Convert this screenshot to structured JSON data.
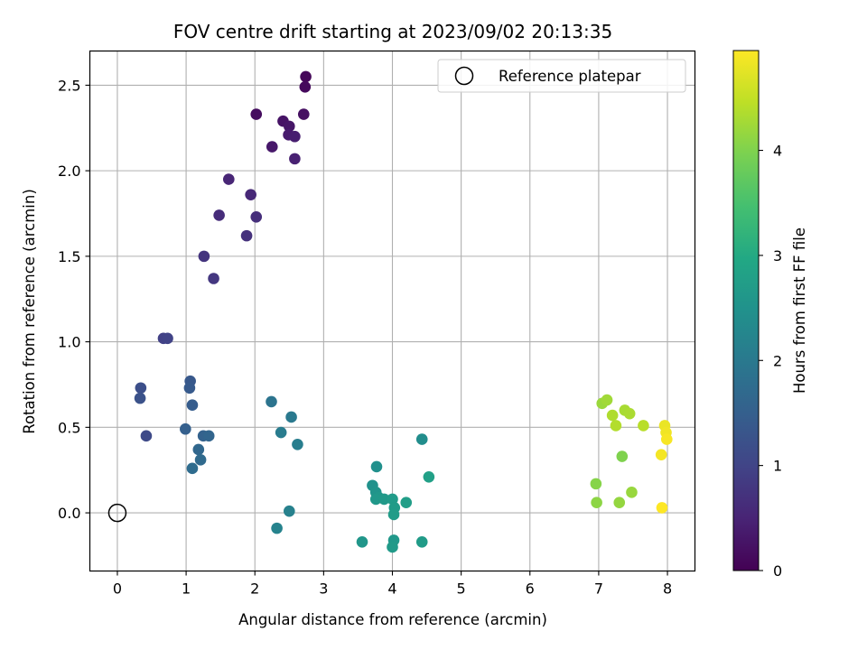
{
  "chart_data": {
    "type": "scatter",
    "title": "FOV centre drift starting at 2023/09/02 20:13:35",
    "xlabel": "Angular distance from reference (arcmin)",
    "ylabel": "Rotation from reference (arcmin)",
    "xlim": [
      -0.4,
      8.4
    ],
    "ylim": [
      -0.34,
      2.7
    ],
    "xticks": [
      "0",
      "1",
      "2",
      "3",
      "4",
      "5",
      "6",
      "7",
      "8"
    ],
    "yticks": [
      "0.0",
      "0.5",
      "1.0",
      "1.5",
      "2.0",
      "2.5"
    ],
    "grid": true,
    "legend": {
      "position": "top-right",
      "label": "Reference platepar"
    },
    "reference_point": {
      "x": 0,
      "y": 0
    },
    "colorbar": {
      "label": "Hours from first FF file",
      "range": [
        0,
        4.95
      ],
      "ticks": [
        "0",
        "1",
        "2",
        "3",
        "4"
      ],
      "colormap": "viridis"
    },
    "points": [
      {
        "x": 2.74,
        "y": 2.55,
        "h": 0.08
      },
      {
        "x": 2.73,
        "y": 2.49,
        "h": 0.12
      },
      {
        "x": 2.02,
        "y": 2.33,
        "h": 0.17
      },
      {
        "x": 2.71,
        "y": 2.33,
        "h": 0.21
      },
      {
        "x": 2.41,
        "y": 2.29,
        "h": 0.25
      },
      {
        "x": 2.5,
        "y": 2.26,
        "h": 0.29
      },
      {
        "x": 2.25,
        "y": 2.14,
        "h": 0.33
      },
      {
        "x": 2.49,
        "y": 2.21,
        "h": 0.37
      },
      {
        "x": 2.58,
        "y": 2.2,
        "h": 0.41
      },
      {
        "x": 2.58,
        "y": 2.07,
        "h": 0.45
      },
      {
        "x": 1.62,
        "y": 1.95,
        "h": 0.52
      },
      {
        "x": 1.94,
        "y": 1.86,
        "h": 0.56
      },
      {
        "x": 1.48,
        "y": 1.74,
        "h": 0.62
      },
      {
        "x": 2.02,
        "y": 1.73,
        "h": 0.66
      },
      {
        "x": 1.88,
        "y": 1.62,
        "h": 0.7
      },
      {
        "x": 1.26,
        "y": 1.5,
        "h": 0.75
      },
      {
        "x": 1.4,
        "y": 1.37,
        "h": 0.79
      },
      {
        "x": 0.67,
        "y": 1.02,
        "h": 0.95
      },
      {
        "x": 0.73,
        "y": 1.02,
        "h": 0.98
      },
      {
        "x": 0.42,
        "y": 0.45,
        "h": 1.1
      },
      {
        "x": 0.34,
        "y": 0.73,
        "h": 1.2
      },
      {
        "x": 0.33,
        "y": 0.67,
        "h": 1.25
      },
      {
        "x": 1.06,
        "y": 0.77,
        "h": 1.35
      },
      {
        "x": 1.05,
        "y": 0.73,
        "h": 1.4
      },
      {
        "x": 1.09,
        "y": 0.63,
        "h": 1.45
      },
      {
        "x": 0.99,
        "y": 0.49,
        "h": 1.5
      },
      {
        "x": 1.25,
        "y": 0.45,
        "h": 1.55
      },
      {
        "x": 1.33,
        "y": 0.45,
        "h": 1.6
      },
      {
        "x": 1.18,
        "y": 0.37,
        "h": 1.65
      },
      {
        "x": 1.21,
        "y": 0.31,
        "h": 1.7
      },
      {
        "x": 1.09,
        "y": 0.26,
        "h": 1.75
      },
      {
        "x": 2.24,
        "y": 0.65,
        "h": 1.9
      },
      {
        "x": 2.53,
        "y": 0.56,
        "h": 2.0
      },
      {
        "x": 2.38,
        "y": 0.47,
        "h": 2.05
      },
      {
        "x": 2.62,
        "y": 0.4,
        "h": 2.1
      },
      {
        "x": 2.5,
        "y": 0.01,
        "h": 2.15
      },
      {
        "x": 2.32,
        "y": -0.09,
        "h": 2.2
      },
      {
        "x": 4.43,
        "y": 0.43,
        "h": 2.4
      },
      {
        "x": 3.77,
        "y": 0.27,
        "h": 2.45
      },
      {
        "x": 3.71,
        "y": 0.16,
        "h": 2.5
      },
      {
        "x": 3.76,
        "y": 0.12,
        "h": 2.55
      },
      {
        "x": 3.8,
        "y": 0.09,
        "h": 2.6
      },
      {
        "x": 3.76,
        "y": 0.08,
        "h": 2.62
      },
      {
        "x": 3.88,
        "y": 0.08,
        "h": 2.65
      },
      {
        "x": 4.0,
        "y": 0.08,
        "h": 2.68
      },
      {
        "x": 4.03,
        "y": 0.03,
        "h": 2.7
      },
      {
        "x": 4.02,
        "y": -0.01,
        "h": 2.72
      },
      {
        "x": 4.2,
        "y": 0.06,
        "h": 2.75
      },
      {
        "x": 4.53,
        "y": 0.21,
        "h": 2.8
      },
      {
        "x": 3.56,
        "y": -0.17,
        "h": 2.58
      },
      {
        "x": 4.02,
        "y": -0.16,
        "h": 2.62
      },
      {
        "x": 4.0,
        "y": -0.2,
        "h": 2.66
      },
      {
        "x": 4.43,
        "y": -0.17,
        "h": 2.7
      },
      {
        "x": 7.05,
        "y": 0.64,
        "h": 4.2
      },
      {
        "x": 7.12,
        "y": 0.66,
        "h": 4.25
      },
      {
        "x": 7.38,
        "y": 0.6,
        "h": 4.3
      },
      {
        "x": 7.45,
        "y": 0.58,
        "h": 4.32
      },
      {
        "x": 7.2,
        "y": 0.57,
        "h": 4.35
      },
      {
        "x": 7.25,
        "y": 0.51,
        "h": 4.38
      },
      {
        "x": 7.65,
        "y": 0.51,
        "h": 4.42
      },
      {
        "x": 7.34,
        "y": 0.33,
        "h": 4.0
      },
      {
        "x": 6.96,
        "y": 0.17,
        "h": 4.05
      },
      {
        "x": 6.97,
        "y": 0.06,
        "h": 4.1
      },
      {
        "x": 7.3,
        "y": 0.06,
        "h": 4.15
      },
      {
        "x": 7.48,
        "y": 0.12,
        "h": 4.18
      },
      {
        "x": 7.96,
        "y": 0.51,
        "h": 4.8
      },
      {
        "x": 7.98,
        "y": 0.47,
        "h": 4.85
      },
      {
        "x": 7.99,
        "y": 0.43,
        "h": 4.9
      },
      {
        "x": 7.91,
        "y": 0.34,
        "h": 4.88
      },
      {
        "x": 7.92,
        "y": 0.03,
        "h": 4.95
      }
    ]
  }
}
